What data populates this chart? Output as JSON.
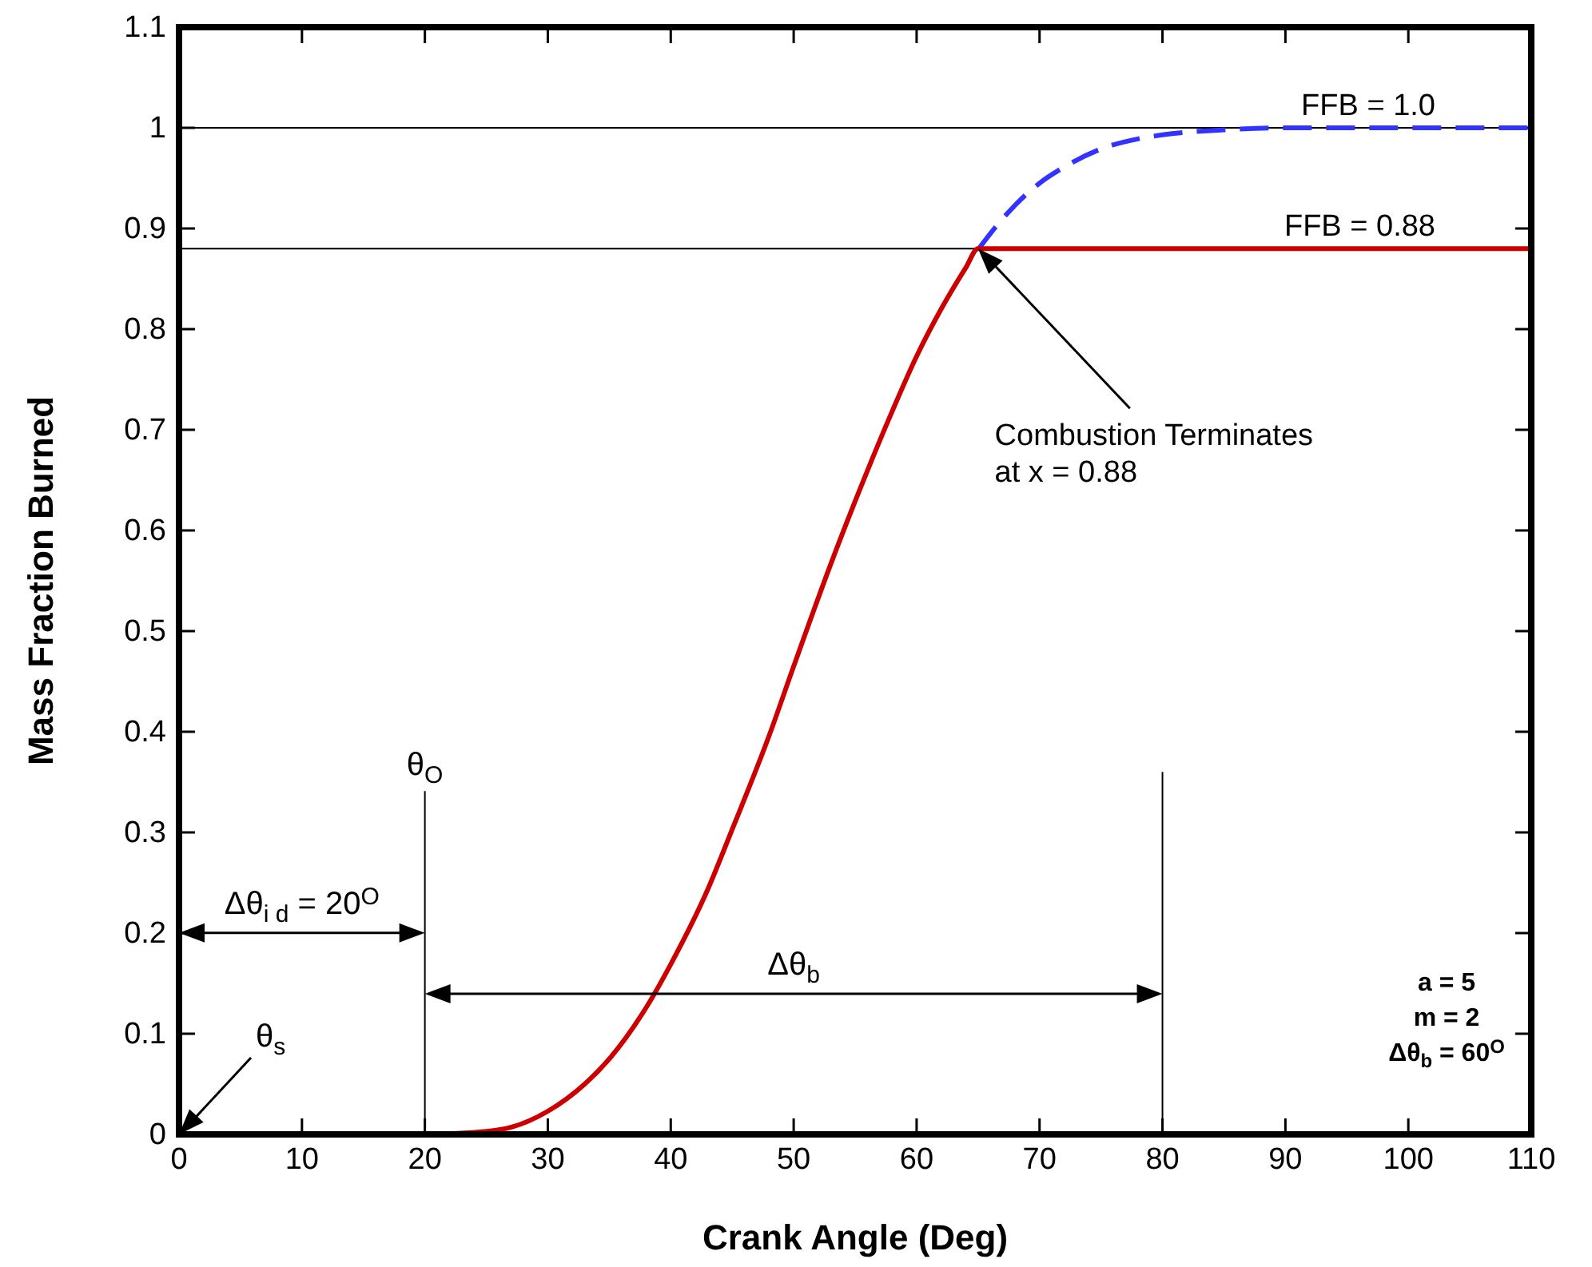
{
  "chart_data": {
    "type": "line",
    "xlabel": "Crank Angle (Deg)",
    "ylabel": "Mass Fraction Burned",
    "xlim": [
      0,
      110
    ],
    "ylim": [
      0,
      1.1
    ],
    "xticks": [
      0,
      10,
      20,
      30,
      40,
      50,
      60,
      70,
      80,
      90,
      100,
      110
    ],
    "yticks": [
      0,
      0.1,
      0.2,
      0.3,
      0.4,
      0.5,
      0.6,
      0.7,
      0.8,
      0.9,
      1,
      1.1
    ],
    "series": [
      {
        "color": "#3333ff",
        "line_style": "dashed",
        "x": [
          65,
          66,
          68,
          70,
          72,
          75,
          78,
          80,
          85,
          90,
          100,
          110
        ],
        "values": [
          0.879,
          0.895,
          0.923,
          0.945,
          0.961,
          0.979,
          0.989,
          0.993,
          0.998,
          1,
          1,
          1
        ]
      },
      {
        "color": "#cc0000",
        "line_style": "solid",
        "x": [
          20,
          25,
          27,
          30,
          33,
          35,
          38,
          40,
          43,
          45,
          48,
          50,
          53,
          55,
          58,
          60,
          62,
          64,
          65,
          70,
          80,
          90,
          100,
          110
        ],
        "values": [
          0,
          0.003,
          0.007,
          0.023,
          0.05,
          0.075,
          0.126,
          0.169,
          0.243,
          0.303,
          0.396,
          0.465,
          0.566,
          0.629,
          0.718,
          0.773,
          0.82,
          0.861,
          0.88,
          0.88,
          0.88,
          0.88,
          0.88,
          0.88
        ]
      }
    ],
    "ref_lines": [
      {
        "axis": "y",
        "value": 1,
        "label": "FFB = 1.0",
        "color": "#000000"
      },
      {
        "axis": "y",
        "value": 0.88,
        "label": "FFB = 0.88",
        "color": "#000000"
      },
      {
        "axis": "x",
        "value": 20,
        "label": "θ$_{O}$",
        "color": "#000000"
      },
      {
        "axis": "x",
        "value": 80,
        "label": null,
        "color": "#000000"
      }
    ],
    "annotations": [
      "Δθ$_{i d}$ = 20$^{O}$",
      "Δθ$_{b}$",
      "θ$_{s}$",
      "Combustion Terminates\nat x = 0.88",
      "a = 5\nm = 2\nΔθ$_{b}$ = 60$^{O}$"
    ]
  }
}
